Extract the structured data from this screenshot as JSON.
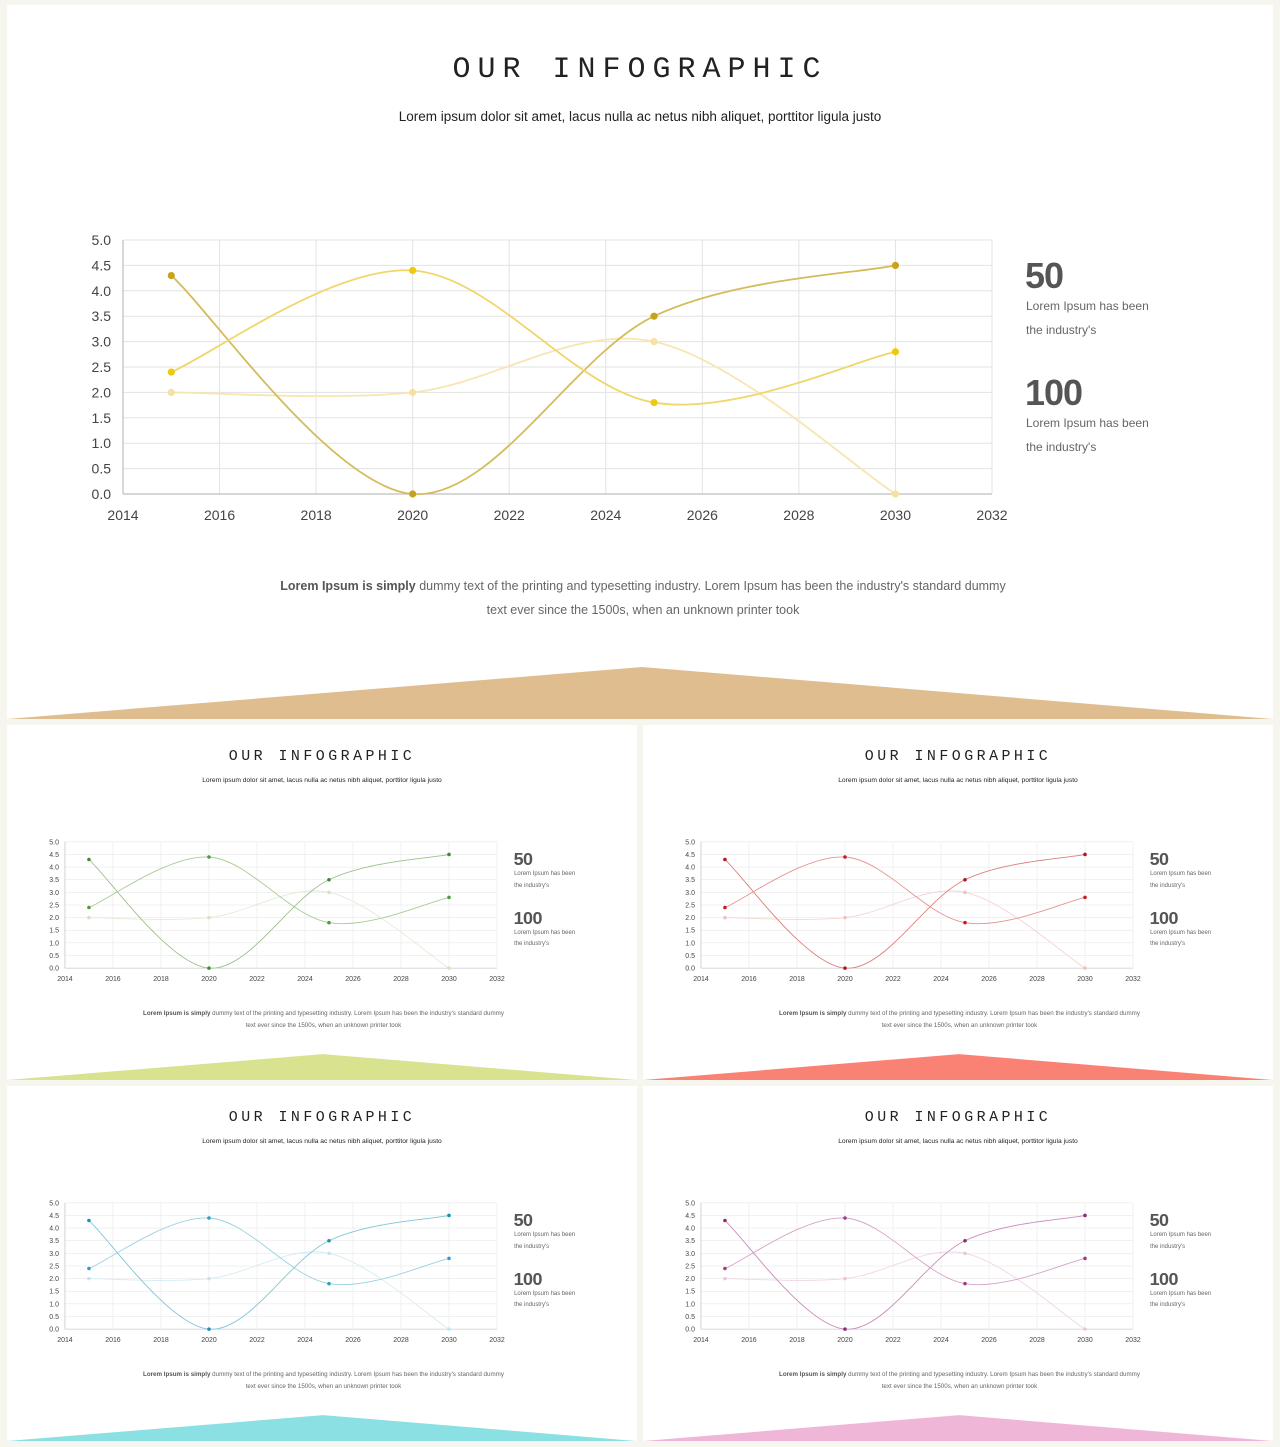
{
  "slide": {
    "title": "OUR INFOGRAPHIC",
    "subtitle": "Lorem ipsum dolor sit amet, lacus nulla ac netus nibh aliquet, porttitor ligula justo",
    "body_bold": "Lorem Ipsum is simply",
    "body_line1": "dummy text of the printing and typesetting industry. Lorem Ipsum has been the industry's standard dummy",
    "body_line2": "text ever since the 1500s, when an unknown printer took",
    "stats": [
      {
        "value": "50",
        "line1": "Lorem Ipsum has been",
        "line2": "the industry's"
      },
      {
        "value": "100",
        "line1": "Lorem Ipsum has been",
        "line2": "the industry's"
      }
    ]
  },
  "themes": [
    {
      "name": "gold",
      "series_colors": [
        "#d4bc5a",
        "#f0d66a",
        "#f7e6b2"
      ],
      "point_colors": [
        "#c7a21d",
        "#f0c80e",
        "#f6e0a2"
      ],
      "accent": "#e0bd8f"
    },
    {
      "name": "green",
      "series_colors": [
        "#9cc18a",
        "#a9cc94",
        "#e2ecd6"
      ],
      "point_colors": [
        "#3f8a34",
        "#4e9a3c",
        "#d2e4c4"
      ],
      "accent": "#d9e28f"
    },
    {
      "name": "red",
      "series_colors": [
        "#d9807a",
        "#e59590",
        "#f3d5d2"
      ],
      "point_colors": [
        "#b01518",
        "#c81a1e",
        "#efc1bc"
      ],
      "accent": "#fa8274"
    },
    {
      "name": "blue",
      "series_colors": [
        "#7fc4d8",
        "#9ad2e2",
        "#d4ecf2"
      ],
      "point_colors": [
        "#1f8fb1",
        "#29a1c4",
        "#c4e4ee"
      ],
      "accent": "#8ae0e2"
    },
    {
      "name": "purple",
      "series_colors": [
        "#c88bbb",
        "#d6a3ca",
        "#efd6e6"
      ],
      "point_colors": [
        "#8e2a76",
        "#a33a87",
        "#e7c7dc"
      ],
      "accent": "#f0b6d8"
    }
  ],
  "chart_data": {
    "type": "scatter",
    "xlim": [
      2014,
      2032
    ],
    "ylim": [
      0,
      5
    ],
    "x_ticks": [
      "2014",
      "2016",
      "2018",
      "2020",
      "2022",
      "2024",
      "2026",
      "2028",
      "2030",
      "2032"
    ],
    "y_ticks": [
      "0.0",
      "0.5",
      "1.0",
      "1.5",
      "2.0",
      "2.5",
      "3.0",
      "3.5",
      "4.0",
      "4.5",
      "5.0"
    ],
    "grid": true,
    "smooth_lines": true,
    "series": [
      {
        "points": [
          [
            2015,
            4.3
          ],
          [
            2020,
            0.0
          ],
          [
            2025,
            3.5
          ],
          [
            2030,
            4.5
          ]
        ]
      },
      {
        "points": [
          [
            2015,
            2.4
          ],
          [
            2020,
            4.4
          ],
          [
            2025,
            1.8
          ],
          [
            2030,
            2.8
          ]
        ]
      },
      {
        "points": [
          [
            2015,
            2.0
          ],
          [
            2020,
            2.0
          ],
          [
            2025,
            3.0
          ],
          [
            2030,
            0.0
          ]
        ]
      }
    ]
  }
}
